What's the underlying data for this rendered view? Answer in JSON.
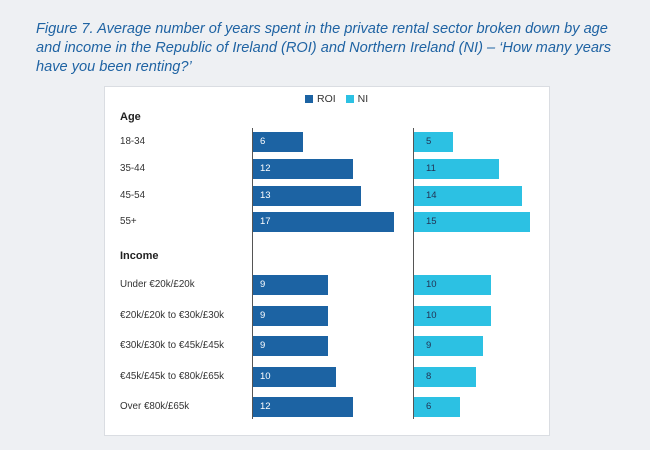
{
  "title": "Figure 7. Average number of years spent in the private rental sector broken down by age and income in the Republic of Ireland (ROI) and Northern Ireland (NI) – ‘How many years have you been renting?’",
  "colors": {
    "roi": "#1c63a3",
    "ni": "#2cc1e3",
    "title": "#1f63a3"
  },
  "legend": {
    "roi": "ROI",
    "ni": "NI"
  },
  "chart_data": {
    "type": "bar",
    "orientation": "horizontal",
    "title": "Figure 7. Average number of years spent in the private rental sector broken down by age and income in the Republic of Ireland (ROI) and Northern Ireland (NI) – ‘How many years have you been renting?’",
    "xlim": [
      0,
      19
    ],
    "series_names": [
      "ROI",
      "NI"
    ],
    "groups": [
      {
        "heading": "Age",
        "rows": [
          {
            "label": "18-34",
            "roi": 6,
            "ni": 5
          },
          {
            "label": "35-44",
            "roi": 12,
            "ni": 11
          },
          {
            "label": "45-54",
            "roi": 13,
            "ni": 14
          },
          {
            "label": "55+",
            "roi": 17,
            "ni": 15
          }
        ]
      },
      {
        "heading": "Income",
        "rows": [
          {
            "label": "Under €20k/£20k",
            "roi": 9,
            "ni": 10
          },
          {
            "label": "€20k/£20k to €30k/£30k",
            "roi": 9,
            "ni": 10
          },
          {
            "label": "€30k/£30k to €45k/£45k",
            "roi": 9,
            "ni": 9
          },
          {
            "label": "€45k/£45k to €80k/£65k",
            "roi": 10,
            "ni": 8
          },
          {
            "label": "Over €80k/£65k",
            "roi": 12,
            "ni": 6
          }
        ]
      }
    ]
  }
}
